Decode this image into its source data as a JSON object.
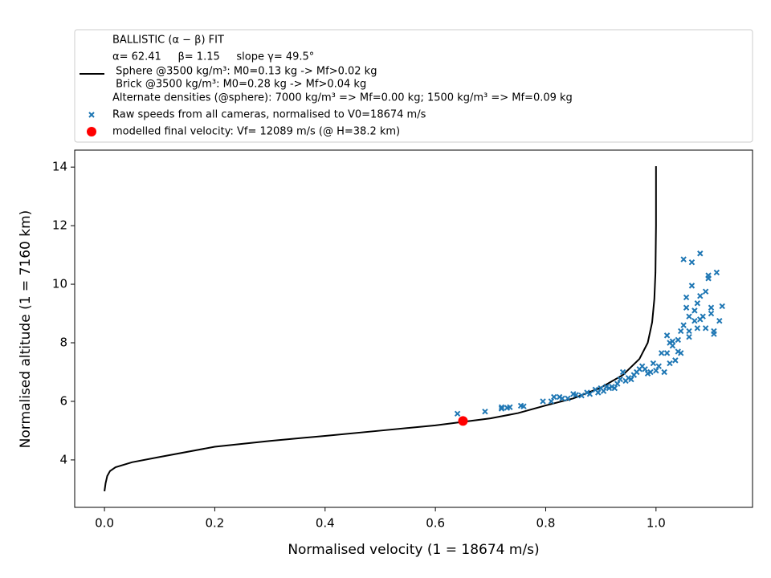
{
  "chart_data": {
    "type": "line",
    "xlabel": "Normalised velocity (1 = 18674 m/s)",
    "ylabel": "Normalised altitude (1 = 7160 km)",
    "xlim": [
      -0.054,
      1.175
    ],
    "ylim": [
      2.38,
      14.58
    ],
    "xticks": [
      {
        "value": 0,
        "label": "0.0"
      },
      0.2,
      0.4,
      0.6,
      0.8,
      {
        "value": 1,
        "label": "1.0"
      }
    ],
    "yticks": [
      4,
      6,
      8,
      10,
      12,
      14
    ],
    "grid": false,
    "legend": "top",
    "series": [
      {
        "name": [
          "BALLISTIC (α − β) FIT",
          "α= 62.41     β= 1.15     slope γ= 49.5°",
          " Sphere @3500 kg/m³: M0=0.13 kg -> Mf>0.02 kg",
          " Brick @3500 kg/m³: M0=0.28 kg -> Mf>0.04 kg",
          "Alternate densities (@sphere): 7000 kg/m³ => Mf=0.00 kg; 1500 kg/m³ => Mf=0.09 kg"
        ],
        "mark": "line",
        "color": "#000000",
        "x": [
          0,
          0.002,
          0.005,
          0.01,
          0.02,
          0.05,
          0.1,
          0.2,
          0.3,
          0.4,
          0.5,
          0.6,
          0.65,
          0.7,
          0.75,
          0.8,
          0.85,
          0.9,
          0.94,
          0.97,
          0.985,
          0.993,
          0.997,
          0.999,
          1.0,
          1.0
        ],
        "values": [
          2.93,
          3.2,
          3.45,
          3.62,
          3.75,
          3.92,
          4.1,
          4.45,
          4.65,
          4.82,
          5.0,
          5.18,
          5.3,
          5.42,
          5.6,
          5.86,
          6.1,
          6.47,
          6.9,
          7.45,
          8.0,
          8.7,
          9.5,
          10.4,
          12.0,
          14.03
        ]
      },
      {
        "name": "Raw speeds from all cameras, normalised to V0=18674 m/s",
        "mark": "x",
        "color": "#1f77b4",
        "x": [
          0.64,
          0.69,
          0.72,
          0.72,
          0.73,
          0.735,
          0.755,
          0.76,
          0.795,
          0.81,
          0.815,
          0.825,
          0.83,
          0.84,
          0.85,
          0.855,
          0.865,
          0.875,
          0.88,
          0.89,
          0.895,
          0.9,
          0.905,
          0.91,
          0.915,
          0.92,
          0.925,
          0.93,
          0.935,
          0.94,
          0.945,
          0.95,
          0.955,
          0.96,
          0.965,
          0.97,
          0.975,
          0.98,
          0.985,
          0.99,
          0.995,
          1.0,
          1.005,
          1.01,
          1.015,
          1.02,
          1.02,
          1.025,
          1.03,
          1.03,
          1.035,
          1.04,
          1.04,
          1.045,
          1.045,
          1.05,
          1.05,
          1.055,
          1.055,
          1.06,
          1.06,
          1.065,
          1.065,
          1.07,
          1.07,
          1.075,
          1.075,
          1.08,
          1.08,
          1.085,
          1.09,
          1.09,
          1.095,
          1.095,
          1.1,
          1.1,
          1.105,
          1.105,
          1.11,
          1.115,
          1.12,
          1.025,
          1.06,
          1.08
        ],
        "values": [
          5.58,
          5.65,
          5.75,
          5.8,
          5.78,
          5.8,
          5.85,
          5.83,
          6.0,
          6.0,
          6.15,
          6.15,
          6.1,
          6.1,
          6.25,
          6.22,
          6.2,
          6.3,
          6.25,
          6.4,
          6.3,
          6.45,
          6.35,
          6.5,
          6.45,
          6.5,
          6.45,
          6.6,
          6.75,
          7.0,
          6.7,
          6.8,
          6.75,
          6.9,
          7.0,
          7.1,
          7.2,
          7.1,
          6.95,
          7.0,
          7.3,
          7.05,
          7.2,
          7.65,
          7.0,
          7.65,
          8.25,
          7.3,
          7.9,
          8.05,
          7.4,
          8.1,
          7.7,
          8.4,
          7.65,
          8.6,
          10.85,
          9.55,
          9.2,
          8.9,
          8.4,
          9.95,
          10.75,
          8.75,
          9.1,
          8.5,
          9.35,
          11.05,
          9.6,
          8.9,
          9.75,
          8.5,
          10.2,
          10.3,
          9.2,
          9.0,
          8.4,
          8.3,
          10.4,
          8.75,
          9.25,
          8.0,
          8.2,
          8.8
        ]
      },
      {
        "name": "modelled final velocity: Vf= 12089 m/s (@ H=38.2 km)",
        "mark": "o",
        "color": "#ff0000",
        "x": [
          0.65
        ],
        "values": [
          5.33
        ]
      }
    ]
  }
}
